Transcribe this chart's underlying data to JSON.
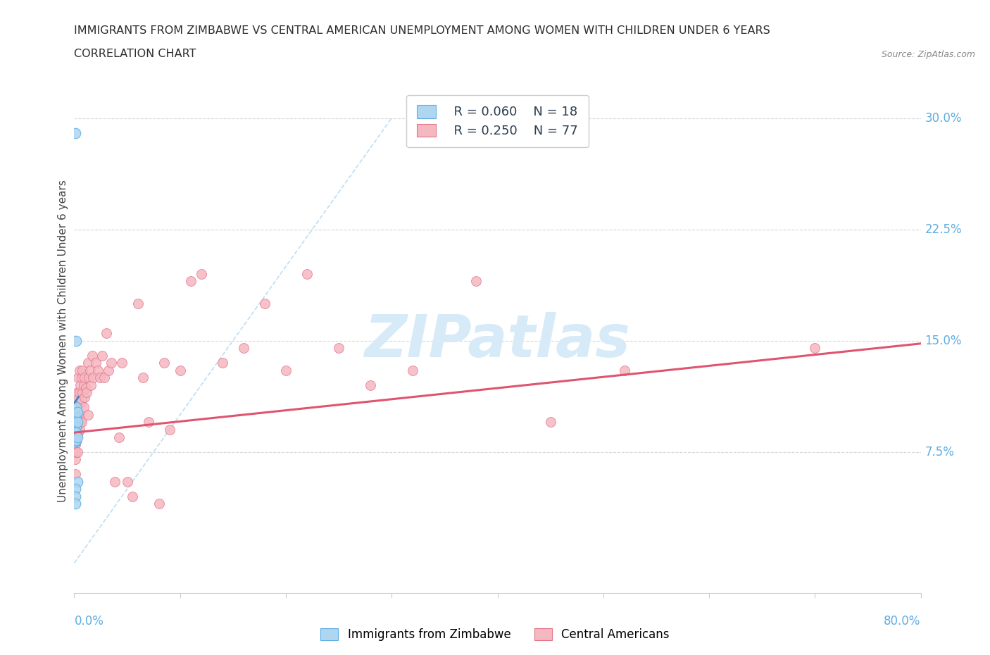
{
  "title_line1": "IMMIGRANTS FROM ZIMBABWE VS CENTRAL AMERICAN UNEMPLOYMENT AMONG WOMEN WITH CHILDREN UNDER 6 YEARS",
  "title_line2": "CORRELATION CHART",
  "source": "Source: ZipAtlas.com",
  "ylabel": "Unemployment Among Women with Children Under 6 years",
  "xlim": [
    0.0,
    0.8
  ],
  "ylim": [
    -0.02,
    0.32
  ],
  "ytick_vals": [
    0.075,
    0.15,
    0.225,
    0.3
  ],
  "ytick_labels": [
    "7.5%",
    "15.0%",
    "22.5%",
    "30.0%"
  ],
  "color_zimbabwe": "#aed6f1",
  "color_zimbabwe_edge": "#5dade2",
  "color_central": "#f5b7c0",
  "color_central_edge": "#e0748a",
  "color_trend_zimbabwe": "#2e86c1",
  "color_trend_central": "#e05470",
  "color_axis_labels": "#5dade2",
  "color_grid": "#d5d8dc",
  "color_refline": "#aed6f1",
  "watermark_color": "#d6eaf8",
  "legend_r1": "R = 0.060",
  "legend_n1": "N = 18",
  "legend_r2": "R = 0.250",
  "legend_n2": "N = 77",
  "zimbabwe_x": [
    0.001,
    0.001,
    0.001,
    0.001,
    0.001,
    0.002,
    0.002,
    0.002,
    0.002,
    0.002,
    0.002,
    0.003,
    0.003,
    0.003,
    0.003,
    0.001,
    0.001,
    0.001
  ],
  "zimbabwe_y": [
    0.29,
    0.1,
    0.095,
    0.088,
    0.082,
    0.15,
    0.105,
    0.098,
    0.092,
    0.088,
    0.083,
    0.102,
    0.095,
    0.085,
    0.055,
    0.05,
    0.045,
    0.04
  ],
  "central_x": [
    0.001,
    0.001,
    0.001,
    0.001,
    0.002,
    0.002,
    0.002,
    0.002,
    0.002,
    0.003,
    0.003,
    0.003,
    0.003,
    0.003,
    0.004,
    0.004,
    0.004,
    0.004,
    0.005,
    0.005,
    0.005,
    0.005,
    0.006,
    0.006,
    0.006,
    0.007,
    0.007,
    0.007,
    0.008,
    0.008,
    0.009,
    0.009,
    0.01,
    0.01,
    0.011,
    0.012,
    0.013,
    0.013,
    0.014,
    0.015,
    0.016,
    0.017,
    0.018,
    0.02,
    0.022,
    0.024,
    0.026,
    0.028,
    0.03,
    0.032,
    0.035,
    0.038,
    0.042,
    0.045,
    0.05,
    0.055,
    0.06,
    0.065,
    0.07,
    0.08,
    0.085,
    0.09,
    0.1,
    0.11,
    0.12,
    0.14,
    0.16,
    0.18,
    0.2,
    0.22,
    0.25,
    0.28,
    0.32,
    0.38,
    0.45,
    0.52,
    0.7
  ],
  "central_y": [
    0.09,
    0.08,
    0.07,
    0.06,
    0.105,
    0.095,
    0.088,
    0.082,
    0.075,
    0.115,
    0.1,
    0.093,
    0.087,
    0.075,
    0.125,
    0.11,
    0.098,
    0.088,
    0.13,
    0.115,
    0.1,
    0.09,
    0.12,
    0.108,
    0.095,
    0.125,
    0.11,
    0.095,
    0.13,
    0.115,
    0.12,
    0.105,
    0.125,
    0.112,
    0.118,
    0.115,
    0.135,
    0.1,
    0.125,
    0.13,
    0.12,
    0.14,
    0.125,
    0.135,
    0.13,
    0.125,
    0.14,
    0.125,
    0.155,
    0.13,
    0.135,
    0.055,
    0.085,
    0.135,
    0.055,
    0.045,
    0.175,
    0.125,
    0.095,
    0.04,
    0.135,
    0.09,
    0.13,
    0.19,
    0.195,
    0.135,
    0.145,
    0.175,
    0.13,
    0.195,
    0.145,
    0.12,
    0.13,
    0.19,
    0.095,
    0.13,
    0.145
  ],
  "trend_central_x0": 0.0,
  "trend_central_y0": 0.088,
  "trend_central_x1": 0.8,
  "trend_central_y1": 0.148,
  "trend_zim_x0": 0.0,
  "trend_zim_y0": 0.108,
  "trend_zim_x1": 0.004,
  "trend_zim_y1": 0.112
}
